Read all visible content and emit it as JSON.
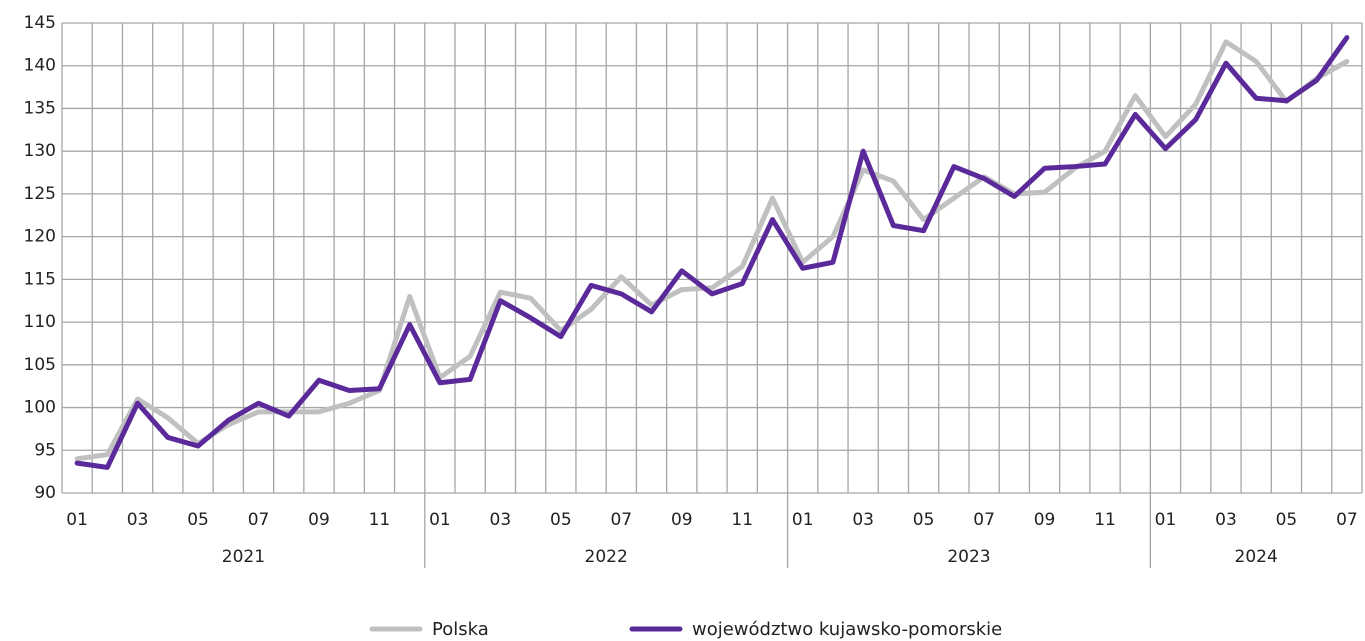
{
  "chart_data": {
    "type": "line",
    "categories": [
      "01",
      null,
      "03",
      null,
      "05",
      null,
      "07",
      null,
      "09",
      null,
      "11",
      null,
      "01",
      null,
      "03",
      null,
      "05",
      null,
      "07",
      null,
      "09",
      null,
      "11",
      null,
      "01",
      null,
      "03",
      null,
      "05",
      null,
      "07",
      null,
      "09",
      null,
      "11",
      null,
      "01",
      null,
      "03",
      null,
      "05",
      null,
      "07"
    ],
    "years": [
      "2021",
      "2022",
      "2023",
      "2024"
    ],
    "series": [
      {
        "name": "Polska",
        "color": "#c0c0c0",
        "values": [
          94,
          94.5,
          101,
          98.8,
          95.8,
          98,
          99.5,
          99.5,
          99.5,
          100.5,
          102,
          113,
          103.5,
          106,
          113.5,
          112.8,
          109,
          111.5,
          115.3,
          112,
          113.8,
          114,
          116.5,
          124.5,
          117,
          120,
          127.8,
          126.5,
          122,
          124.5,
          127,
          125,
          125.2,
          128,
          130,
          136.5,
          131.7,
          135.5,
          142.8,
          140.5,
          135.8,
          138.5,
          140.5
        ]
      },
      {
        "name": "województwo kujawsko-pomorskie",
        "color": "#5b2a9a",
        "values": [
          93.5,
          93,
          100.5,
          96.5,
          95.5,
          98.5,
          100.5,
          99,
          103.2,
          102,
          102.2,
          109.7,
          102.9,
          103.3,
          112.5,
          110.5,
          108.3,
          114.3,
          113.3,
          111.2,
          116,
          113.3,
          114.5,
          122,
          116.3,
          117,
          130,
          121.3,
          120.7,
          128.2,
          126.8,
          124.7,
          128,
          128.2,
          128.5,
          134.3,
          130.3,
          133.7,
          140.3,
          136.2,
          135.9,
          138.3,
          143.3
        ]
      }
    ],
    "ylim": [
      90,
      145
    ],
    "yticks": [
      90,
      95,
      100,
      105,
      110,
      115,
      120,
      125,
      130,
      135,
      140,
      145
    ],
    "grid": true,
    "legend": "bottom"
  }
}
